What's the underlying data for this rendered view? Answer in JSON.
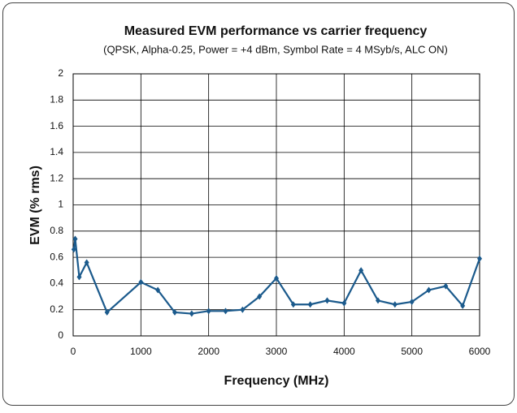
{
  "chart_data": {
    "type": "line",
    "title": "Measured EVM performance vs carrier frequency",
    "subtitle": "(QPSK, Alpha-0.25, Power = +4 dBm, Symbol Rate = 4 MSyb/s, ALC ON)",
    "x_label": "Frequency (MHz)",
    "y_label": "EVM (% rms)",
    "x": [
      10,
      30,
      90,
      200,
      500,
      1000,
      1250,
      1500,
      1750,
      2000,
      2250,
      2500,
      2750,
      3000,
      3250,
      3500,
      3750,
      4000,
      4250,
      4500,
      4750,
      5000,
      5250,
      5500,
      5750,
      6000
    ],
    "series": [
      {
        "name": "EVM",
        "color": "#1b5a8c",
        "values": [
          0.66,
          0.74,
          0.45,
          0.56,
          0.18,
          0.41,
          0.35,
          0.18,
          0.17,
          0.19,
          0.19,
          0.2,
          0.3,
          0.44,
          0.24,
          0.24,
          0.27,
          0.25,
          0.5,
          0.27,
          0.24,
          0.26,
          0.35,
          0.38,
          0.23,
          0.59
        ]
      }
    ],
    "xlim": [
      0,
      6000
    ],
    "xticks": [
      0,
      1000,
      2000,
      3000,
      4000,
      5000,
      6000
    ],
    "ylim": [
      0,
      2
    ],
    "yticks": [
      0,
      0.2,
      0.4,
      0.6,
      0.8,
      1,
      1.2,
      1.4,
      1.6,
      1.8,
      2
    ],
    "grid": true
  }
}
